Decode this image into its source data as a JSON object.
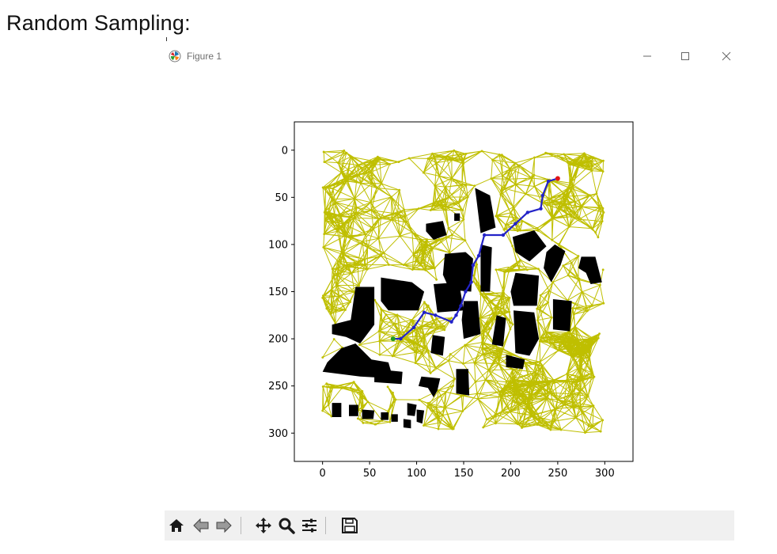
{
  "heading": "Random Sampling:",
  "window": {
    "title": "Figure 1",
    "controls": [
      "minimize-icon",
      "maximize-icon",
      "close-icon"
    ]
  },
  "toolbar": {
    "buttons": [
      "home-icon",
      "back-arrow-icon",
      "forward-arrow-icon",
      "pan-icon",
      "zoom-icon",
      "configure-subplots-icon",
      "save-icon"
    ]
  },
  "chart_data": {
    "type": "scatter",
    "title": "",
    "xlabel": "",
    "ylabel": "",
    "xlim": [
      -30,
      330
    ],
    "ylim": [
      330,
      -30
    ],
    "y_inverted": true,
    "xticks": [
      0,
      50,
      100,
      150,
      200,
      250,
      300
    ],
    "yticks": [
      0,
      50,
      100,
      150,
      200,
      250,
      300
    ],
    "grid": false,
    "colors": {
      "roadmap_edges": "#bfbf00",
      "path": "#2323c8",
      "start": "#1f9a1f",
      "goal": "#e01515",
      "obstacles": "#000000"
    },
    "start_point": [
      75,
      200
    ],
    "goal_point": [
      250,
      30
    ],
    "path": [
      [
        75,
        200
      ],
      [
        83,
        200
      ],
      [
        97,
        188
      ],
      [
        108,
        172
      ],
      [
        120,
        175
      ],
      [
        137,
        182
      ],
      [
        142,
        175
      ],
      [
        147,
        165
      ],
      [
        152,
        150
      ],
      [
        158,
        140
      ],
      [
        160,
        122
      ],
      [
        166,
        112
      ],
      [
        172,
        90
      ],
      [
        192,
        90
      ],
      [
        205,
        78
      ],
      [
        218,
        66
      ],
      [
        232,
        62
      ],
      [
        234,
        48
      ],
      [
        240,
        33
      ],
      [
        250,
        30
      ]
    ],
    "obstacles": [
      [
        [
          162,
          40
        ],
        [
          178,
          48
        ],
        [
          184,
          82
        ],
        [
          168,
          88
        ],
        [
          164,
          55
        ]
      ],
      [
        [
          140,
          67
        ],
        [
          146,
          67
        ],
        [
          146,
          75
        ],
        [
          140,
          75
        ]
      ],
      [
        [
          110,
          78
        ],
        [
          128,
          75
        ],
        [
          132,
          90
        ],
        [
          118,
          95
        ],
        [
          110,
          86
        ]
      ],
      [
        [
          202,
          92
        ],
        [
          225,
          85
        ],
        [
          238,
          102
        ],
        [
          220,
          118
        ],
        [
          205,
          108
        ]
      ],
      [
        [
          247,
          100
        ],
        [
          258,
          107
        ],
        [
          253,
          122
        ],
        [
          243,
          140
        ],
        [
          235,
          125
        ],
        [
          238,
          108
        ]
      ],
      [
        [
          275,
          113
        ],
        [
          290,
          113
        ],
        [
          297,
          140
        ],
        [
          285,
          142
        ],
        [
          280,
          130
        ],
        [
          272,
          125
        ]
      ],
      [
        [
          130,
          110
        ],
        [
          152,
          108
        ],
        [
          160,
          115
        ],
        [
          158,
          150
        ],
        [
          135,
          148
        ],
        [
          128,
          132
        ]
      ],
      [
        [
          168,
          100
        ],
        [
          180,
          103
        ],
        [
          178,
          150
        ],
        [
          168,
          150
        ]
      ],
      [
        [
          205,
          130
        ],
        [
          230,
          133
        ],
        [
          228,
          165
        ],
        [
          203,
          165
        ],
        [
          200,
          150
        ]
      ],
      [
        [
          62,
          135
        ],
        [
          95,
          140
        ],
        [
          108,
          150
        ],
        [
          102,
          170
        ],
        [
          70,
          170
        ],
        [
          62,
          160
        ]
      ],
      [
        [
          35,
          145
        ],
        [
          55,
          145
        ],
        [
          55,
          185
        ],
        [
          40,
          205
        ],
        [
          25,
          198
        ],
        [
          10,
          195
        ],
        [
          10,
          185
        ],
        [
          30,
          180
        ]
      ],
      [
        [
          118,
          142
        ],
        [
          145,
          140
        ],
        [
          150,
          170
        ],
        [
          122,
          172
        ]
      ],
      [
        [
          150,
          160
        ],
        [
          165,
          160
        ],
        [
          168,
          195
        ],
        [
          150,
          200
        ],
        [
          148,
          180
        ]
      ],
      [
        [
          185,
          175
        ],
        [
          195,
          178
        ],
        [
          192,
          208
        ],
        [
          180,
          206
        ]
      ],
      [
        [
          203,
          170
        ],
        [
          225,
          172
        ],
        [
          230,
          200
        ],
        [
          220,
          218
        ],
        [
          205,
          215
        ]
      ],
      [
        [
          245,
          158
        ],
        [
          265,
          160
        ],
        [
          263,
          192
        ],
        [
          245,
          190
        ]
      ],
      [
        [
          117,
          196
        ],
        [
          130,
          198
        ],
        [
          128,
          218
        ],
        [
          115,
          215
        ]
      ],
      [
        [
          195,
          217
        ],
        [
          215,
          222
        ],
        [
          213,
          232
        ],
        [
          195,
          230
        ]
      ],
      [
        [
          20,
          210
        ],
        [
          35,
          205
        ],
        [
          52,
          222
        ],
        [
          70,
          225
        ],
        [
          75,
          242
        ],
        [
          40,
          240
        ],
        [
          0,
          235
        ],
        [
          5,
          225
        ]
      ],
      [
        [
          55,
          232
        ],
        [
          85,
          235
        ],
        [
          84,
          248
        ],
        [
          55,
          246
        ]
      ],
      [
        [
          105,
          240
        ],
        [
          125,
          242
        ],
        [
          122,
          255
        ],
        [
          118,
          262
        ],
        [
          112,
          252
        ],
        [
          102,
          250
        ]
      ],
      [
        [
          142,
          232
        ],
        [
          155,
          232
        ],
        [
          156,
          260
        ],
        [
          142,
          258
        ]
      ],
      [
        [
          10,
          268
        ],
        [
          20,
          268
        ],
        [
          20,
          283
        ],
        [
          10,
          283
        ]
      ],
      [
        [
          28,
          270
        ],
        [
          38,
          270
        ],
        [
          38,
          282
        ],
        [
          28,
          282
        ]
      ],
      [
        [
          42,
          275
        ],
        [
          55,
          276
        ],
        [
          54,
          285
        ],
        [
          42,
          285
        ]
      ],
      [
        [
          62,
          278
        ],
        [
          70,
          278
        ],
        [
          70,
          286
        ],
        [
          62,
          286
        ]
      ],
      [
        [
          73,
          280
        ],
        [
          80,
          280
        ],
        [
          80,
          288
        ],
        [
          73,
          288
        ]
      ],
      [
        [
          86,
          285
        ],
        [
          94,
          286
        ],
        [
          94,
          295
        ],
        [
          86,
          294
        ]
      ],
      [
        [
          90,
          268
        ],
        [
          100,
          270
        ],
        [
          98,
          282
        ],
        [
          90,
          281
        ]
      ],
      [
        [
          100,
          275
        ],
        [
          108,
          276
        ],
        [
          106,
          290
        ],
        [
          100,
          288
        ]
      ]
    ],
    "roadmap": {
      "node_count": 520,
      "neighbor_radius": 26,
      "seed": 7,
      "x_range": [
        0,
        300
      ],
      "y_range": [
        0,
        300
      ]
    }
  }
}
